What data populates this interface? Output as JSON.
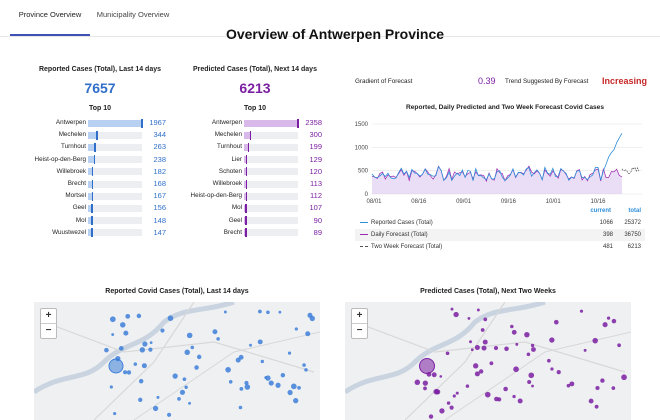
{
  "tabs": [
    {
      "label": "Province Overview",
      "active": true
    },
    {
      "label": "Municipality Overview",
      "active": false
    }
  ],
  "page_title": "Overview of Antwerpen Province",
  "reported": {
    "title": "Reported Cases (Total), Last 14 days",
    "total": "7657",
    "top_title": "Top 10",
    "color": "#2f6fc9",
    "bar_color": "#b8d0f2",
    "rows": [
      {
        "name": "Antwerpen",
        "value": 1967
      },
      {
        "name": "Mechelen",
        "value": 344
      },
      {
        "name": "Turnhout",
        "value": 263
      },
      {
        "name": "Heist-op-den-Berg",
        "value": 238
      },
      {
        "name": "Willebroek",
        "value": 182
      },
      {
        "name": "Brecht",
        "value": 168
      },
      {
        "name": "Mortsel",
        "value": 167
      },
      {
        "name": "Geel",
        "value": 156
      },
      {
        "name": "Mol",
        "value": 148
      },
      {
        "name": "Wuustwezel",
        "value": 147
      }
    ]
  },
  "predicted": {
    "title": "Predicted Cases (Total), Next 14 days",
    "total": "6213",
    "top_title": "Top 10",
    "color": "#7b1fa2",
    "bar_color": "#d9b8ea",
    "rows": [
      {
        "name": "Antwerpen",
        "value": 2358
      },
      {
        "name": "Mechelen",
        "value": 300
      },
      {
        "name": "Turnhout",
        "value": 199
      },
      {
        "name": "Lier",
        "value": 129
      },
      {
        "name": "Schoten",
        "value": 120
      },
      {
        "name": "Willebroek",
        "value": 113
      },
      {
        "name": "Heist-op-den-Berg",
        "value": 112
      },
      {
        "name": "Mol",
        "value": 107
      },
      {
        "name": "Geel",
        "value": 90
      },
      {
        "name": "Brecht",
        "value": 89
      }
    ]
  },
  "kpi": {
    "gradient_label": "Gradient of Forecast",
    "gradient_value": "0.39",
    "gradient_color": "#7b1fa2",
    "trend_label": "Trend Suggested By Forecast",
    "trend_value": "Increasing",
    "trend_color": "#c62828"
  },
  "chart_data": {
    "type": "line",
    "title": "Reported, Daily Predicted and Two Week Forecast Covid Cases",
    "ylim": [
      0,
      1500
    ],
    "yticks": [
      "0",
      "500",
      "1000",
      "1500"
    ],
    "xticks": [
      "08/01",
      "08/16",
      "09/01",
      "09/16",
      "10/01",
      "10/16"
    ],
    "series": [
      {
        "name": "Reported Cases (Total)",
        "color": "#2f8fd8"
      },
      {
        "name": "Daily Forecast (Total)",
        "color": "#9c27b0"
      },
      {
        "name": "Two Week Forecast (Total)",
        "color": "#555555"
      }
    ]
  },
  "legend": {
    "current_header": "current",
    "total_header": "total",
    "header_color": "#2f8fd8",
    "rows": [
      {
        "name": "Reported Cases (Total)",
        "current": "1066",
        "total": "25372"
      },
      {
        "name": "Daily Forecast (Total)",
        "current": "398",
        "total": "36750"
      },
      {
        "name": "Two Week Forecast (Total)",
        "current": "481",
        "total": "6213"
      }
    ]
  },
  "maps": {
    "left_title": "Reported Covid Cases (Total), Last 14 days",
    "right_title": "Predicted Cases (Total), Next Two Weeks",
    "zoom_in": "+",
    "zoom_out": "−",
    "left_marker_color": "#3d7fd9",
    "right_marker_color": "#7b1fa2"
  }
}
